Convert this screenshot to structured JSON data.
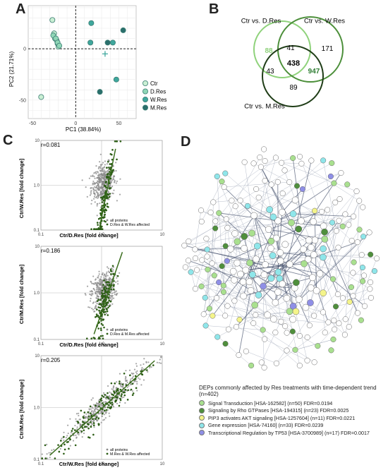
{
  "panels": {
    "a": "A",
    "b": "B",
    "c": "C",
    "d": "D"
  },
  "chart_data": [
    {
      "id": "pca",
      "type": "scatter",
      "xlabel": "PC1 (38.84%)",
      "ylabel": "PC2 (21.71%)",
      "xlim": [
        -55,
        70
      ],
      "ylim": [
        -68,
        42
      ],
      "xticks": [
        -50,
        0,
        50
      ],
      "yticks": [
        -50,
        0
      ],
      "grid": true,
      "legend_position": "right",
      "series": [
        {
          "name": "Ctr",
          "color": "#c9efd3",
          "points": [
            [
              -27,
              28
            ],
            [
              -25,
              15
            ],
            [
              -24,
              10
            ],
            [
              -22,
              8
            ],
            [
              -21,
              5
            ],
            [
              -20,
              2
            ],
            [
              -40,
              -47
            ]
          ]
        },
        {
          "name": "D.Res",
          "color": "#8fd6b6",
          "points": [
            [
              -26,
              13
            ],
            [
              -23,
              10
            ],
            [
              -21,
              6
            ],
            [
              -19,
              3
            ]
          ]
        },
        {
          "name": "W.Res",
          "color": "#3fa79d",
          "points": [
            [
              18,
              25
            ],
            [
              17,
              6
            ],
            [
              43,
              6
            ],
            [
              47,
              -30
            ]
          ]
        },
        {
          "name": "M.Res",
          "color": "#2a6f6c",
          "points": [
            [
              55,
              18
            ],
            [
              37,
              6
            ],
            [
              28,
              -42
            ]
          ]
        }
      ],
      "centroid": {
        "x": 34,
        "y": -5
      }
    },
    {
      "id": "venn",
      "type": "venn",
      "sets": [
        "Ctr vs. D.Res",
        "Ctr vs. W.Res",
        "Ctr vs. M.Res"
      ],
      "colors": [
        "#8fd27b",
        "#4c8f3a",
        "#1f3d17"
      ],
      "regions": {
        "d_only": 88,
        "dw": 41,
        "w_only": 171,
        "dm": 43,
        "dwm": 438,
        "wm": 947,
        "m_only": 89
      }
    },
    {
      "id": "scatter1",
      "type": "scatter",
      "xlabel": "Ctr/D.Res [fold change]",
      "ylabel": "Ctr/W.Res [fold change]",
      "log": true,
      "xlim": [
        0.1,
        10
      ],
      "ylim": [
        0.1,
        10
      ],
      "r": "r=0.081",
      "legend": [
        "all proteins",
        "D.Res & W.Res affected"
      ],
      "highlight_color": "#2d5e16",
      "fit_line": [
        [
          0.93,
          0.12
        ],
        [
          1.7,
          6.5
        ]
      ]
    },
    {
      "id": "scatter2",
      "type": "scatter",
      "xlabel": "Ctr/D.Res [fold change]",
      "ylabel": "Ctr/M.Res [fold change]",
      "log": true,
      "xlim": [
        0.1,
        10
      ],
      "ylim": [
        0.1,
        10
      ],
      "r": "r=0.186",
      "legend": [
        "all proteins",
        "D.Res & M.Res affected"
      ],
      "highlight_color": "#2d5e16",
      "fit_line": [
        [
          0.75,
          0.13
        ],
        [
          2.2,
          7.5
        ]
      ]
    },
    {
      "id": "scatter3",
      "type": "scatter",
      "xlabel": "Ctr/W.Res [fold change]",
      "ylabel": "Ctr/M.Res [fold change]",
      "log": true,
      "xlim": [
        0.1,
        10
      ],
      "ylim": [
        0.1,
        10
      ],
      "r": "r=0.205",
      "legend": [
        "all proteins",
        "M.Res & W.Res affected"
      ],
      "highlight_color": "#2d5e16",
      "fit_line": [
        [
          0.14,
          0.12
        ],
        [
          7.5,
          8.0
        ]
      ]
    }
  ],
  "network": {
    "title": "DEPs commonly affected by Res treatments with time-dependent trend (n=402)",
    "categories": [
      {
        "label": "Signal Transduction [HSA-162582] (n=50) FDR=0.0194",
        "color": "#a9e08f"
      },
      {
        "label": "Signaling by Rho GTPases [HSA-194315] (n=23) FDR=0.0025",
        "color": "#4f8f3c"
      },
      {
        "label": "PIP3 activates AKT signaling [HSA-1257604] (n=11) FDR=0.0221",
        "color": "#f4f48a"
      },
      {
        "label": "Gene expression [HSA-74160] (n=33) FDR=0.0239",
        "color": "#8fe6ea"
      },
      {
        "label": "Transcriptional Regulation by TP53 [HSA-3700989] (n=17)  FDR=0.0017",
        "color": "#8f8fe6"
      }
    ]
  }
}
